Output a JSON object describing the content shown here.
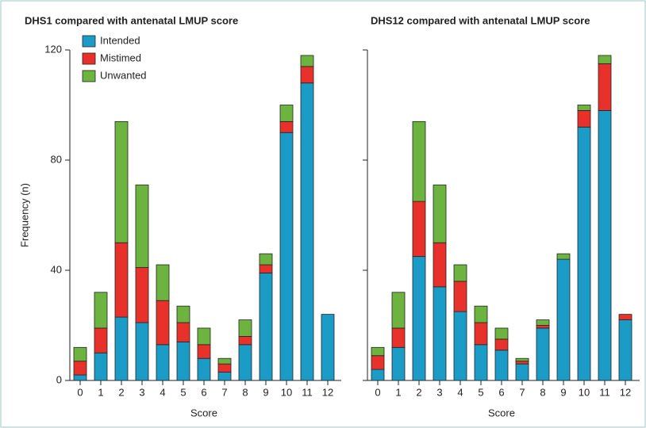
{
  "chart_data": [
    {
      "type": "stacked-bar",
      "title": "DHS1 compared with antenatal LMUP score",
      "x_label": "Score",
      "y_label": "Frequency (n)",
      "categories": [
        "0",
        "1",
        "2",
        "3",
        "4",
        "5",
        "6",
        "7",
        "8",
        "9",
        "10",
        "11",
        "12"
      ],
      "series": [
        {
          "name": "Intended",
          "color": "#1a9cc6",
          "values": [
            2,
            10,
            23,
            21,
            13,
            14,
            8,
            3,
            13,
            39,
            90,
            108,
            24
          ]
        },
        {
          "name": "Mistimed",
          "color": "#e8312a",
          "values": [
            5,
            9,
            27,
            20,
            16,
            7,
            5,
            3,
            3,
            3,
            4,
            6,
            0
          ]
        },
        {
          "name": "Unwanted",
          "color": "#6db33f",
          "values": [
            5,
            13,
            44,
            30,
            13,
            6,
            6,
            2,
            6,
            4,
            6,
            4,
            0
          ]
        }
      ],
      "ylim": [
        0,
        120
      ],
      "yticks": [
        0,
        40,
        80,
        120
      ],
      "ytick_labels": true,
      "legend": "upper left"
    },
    {
      "type": "stacked-bar",
      "title": "DHS12 compared with antenatal LMUP score",
      "x_label": "Score",
      "categories": [
        "0",
        "1",
        "2",
        "3",
        "4",
        "5",
        "6",
        "7",
        "8",
        "9",
        "10",
        "11",
        "12"
      ],
      "series": [
        {
          "color": "#1a9cc6",
          "values": [
            4,
            12,
            45,
            34,
            25,
            13,
            11,
            6,
            19,
            44,
            92,
            98,
            22
          ]
        },
        {
          "color": "#e8312a",
          "values": [
            5,
            7,
            20,
            16,
            11,
            8,
            4,
            1,
            1,
            0,
            6,
            17,
            2
          ]
        },
        {
          "color": "#6db33f",
          "values": [
            3,
            13,
            29,
            21,
            6,
            6,
            4,
            1,
            2,
            2,
            2,
            3,
            0
          ]
        }
      ],
      "ylim": [
        0,
        120
      ],
      "yticks": [
        0,
        40,
        80,
        120
      ],
      "ytick_labels": false
    }
  ]
}
